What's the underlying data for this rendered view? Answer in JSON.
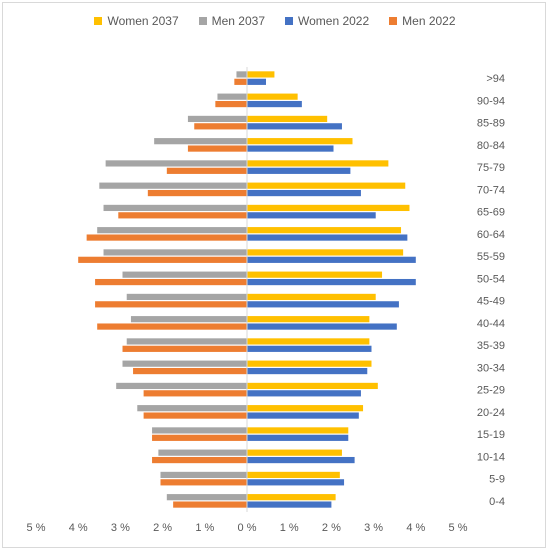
{
  "chart_data": {
    "type": "bar",
    "orientation": "horizontal",
    "layout": "population-pyramid",
    "categories": [
      "0-4",
      "5-9",
      "10-14",
      "15-19",
      "20-24",
      "25-29",
      "30-34",
      "35-39",
      "40-44",
      "45-49",
      "50-54",
      "55-59",
      "60-64",
      "65-69",
      "70-74",
      "75-79",
      "80-84",
      "85-89",
      "90-94",
      ">94"
    ],
    "series": [
      {
        "name": "Women 2037",
        "color": "#ffc000",
        "side": "right",
        "values": [
          2.1,
          2.2,
          2.25,
          2.4,
          2.75,
          3.1,
          2.95,
          2.9,
          2.9,
          3.05,
          3.2,
          3.7,
          3.65,
          3.85,
          3.75,
          3.35,
          2.5,
          1.9,
          1.2,
          0.65
        ]
      },
      {
        "name": "Men 2037",
        "color": "#a5a5a5",
        "side": "left",
        "values": [
          1.9,
          2.05,
          2.1,
          2.25,
          2.6,
          3.1,
          2.95,
          2.85,
          2.75,
          2.85,
          2.95,
          3.4,
          3.55,
          3.4,
          3.5,
          3.35,
          2.2,
          1.4,
          0.7,
          0.25
        ]
      },
      {
        "name": "Women 2022",
        "color": "#4472c4",
        "side": "right",
        "values": [
          2.0,
          2.3,
          2.55,
          2.4,
          2.65,
          2.7,
          2.85,
          2.95,
          3.55,
          3.6,
          4.0,
          4.0,
          3.8,
          3.05,
          2.7,
          2.45,
          2.05,
          2.25,
          1.3,
          0.45
        ]
      },
      {
        "name": "Men 2022",
        "color": "#ed7d31",
        "side": "left",
        "values": [
          1.75,
          2.05,
          2.25,
          2.25,
          2.45,
          2.45,
          2.7,
          2.95,
          3.55,
          3.6,
          3.6,
          4.0,
          3.8,
          3.05,
          2.35,
          1.9,
          1.4,
          1.25,
          0.75,
          0.3
        ]
      }
    ],
    "xlim": [
      -5,
      5
    ],
    "xticks": [
      "5 %",
      "4 %",
      "3 %",
      "2 %",
      "1 %",
      "0 %",
      "1 %",
      "2 %",
      "3 %",
      "4 %",
      "5 %"
    ],
    "legend_position": "top",
    "grid": false
  }
}
